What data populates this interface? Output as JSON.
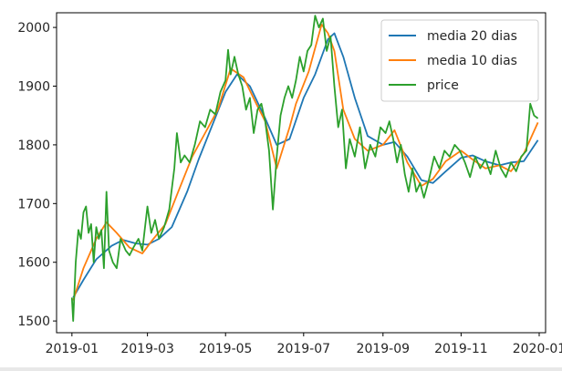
{
  "chart_data": {
    "type": "line",
    "title": "",
    "xlabel": "",
    "ylabel": "",
    "xlim": [
      "2018-12-20",
      "2020-01-06"
    ],
    "ylim": [
      1480,
      2025
    ],
    "x_ticks": [
      "2019-01",
      "2019-03",
      "2019-05",
      "2019-07",
      "2019-09",
      "2019-11",
      "2020-01"
    ],
    "x_tick_dates": [
      "2019-01-01",
      "2019-03-01",
      "2019-05-01",
      "2019-07-01",
      "2019-09-01",
      "2019-11-01",
      "2020-01-01"
    ],
    "y_ticks": [
      1500,
      1600,
      1700,
      1800,
      1900,
      2000
    ],
    "legend_position": "top-right",
    "grid": false,
    "series": [
      {
        "name": "media 20 dias",
        "color": "#1f77b4",
        "points": [
          [
            "2019-01-02",
            1540
          ],
          [
            "2019-01-10",
            1570
          ],
          [
            "2019-01-20",
            1605
          ],
          [
            "2019-02-01",
            1628
          ],
          [
            "2019-02-10",
            1638
          ],
          [
            "2019-02-20",
            1632
          ],
          [
            "2019-03-01",
            1630
          ],
          [
            "2019-03-10",
            1640
          ],
          [
            "2019-03-20",
            1660
          ],
          [
            "2019-04-01",
            1720
          ],
          [
            "2019-04-10",
            1775
          ],
          [
            "2019-04-20",
            1830
          ],
          [
            "2019-05-01",
            1890
          ],
          [
            "2019-05-10",
            1920
          ],
          [
            "2019-05-20",
            1900
          ],
          [
            "2019-06-01",
            1845
          ],
          [
            "2019-06-10",
            1800
          ],
          [
            "2019-06-20",
            1810
          ],
          [
            "2019-07-01",
            1880
          ],
          [
            "2019-07-10",
            1920
          ],
          [
            "2019-07-20",
            1980
          ],
          [
            "2019-07-25",
            1990
          ],
          [
            "2019-08-01",
            1950
          ],
          [
            "2019-08-10",
            1880
          ],
          [
            "2019-08-20",
            1815
          ],
          [
            "2019-09-01",
            1800
          ],
          [
            "2019-09-10",
            1805
          ],
          [
            "2019-09-20",
            1780
          ],
          [
            "2019-10-01",
            1740
          ],
          [
            "2019-10-10",
            1735
          ],
          [
            "2019-10-20",
            1755
          ],
          [
            "2019-11-01",
            1778
          ],
          [
            "2019-11-10",
            1782
          ],
          [
            "2019-11-20",
            1772
          ],
          [
            "2019-12-01",
            1765
          ],
          [
            "2019-12-10",
            1770
          ],
          [
            "2019-12-20",
            1772
          ],
          [
            "2019-12-31",
            1808
          ]
        ]
      },
      {
        "name": "media 10 dias",
        "color": "#ff7f0e",
        "points": [
          [
            "2019-01-02",
            1535
          ],
          [
            "2019-01-10",
            1590
          ],
          [
            "2019-01-20",
            1640
          ],
          [
            "2019-01-28",
            1668
          ],
          [
            "2019-02-05",
            1650
          ],
          [
            "2019-02-15",
            1625
          ],
          [
            "2019-02-25",
            1615
          ],
          [
            "2019-03-05",
            1638
          ],
          [
            "2019-03-15",
            1665
          ],
          [
            "2019-03-25",
            1720
          ],
          [
            "2019-04-05",
            1780
          ],
          [
            "2019-04-15",
            1820
          ],
          [
            "2019-04-25",
            1860
          ],
          [
            "2019-05-05",
            1930
          ],
          [
            "2019-05-15",
            1915
          ],
          [
            "2019-05-25",
            1870
          ],
          [
            "2019-06-01",
            1840
          ],
          [
            "2019-06-10",
            1760
          ],
          [
            "2019-06-20",
            1830
          ],
          [
            "2019-06-25",
            1870
          ],
          [
            "2019-07-05",
            1925
          ],
          [
            "2019-07-15",
            2005
          ],
          [
            "2019-07-20",
            1990
          ],
          [
            "2019-07-25",
            1960
          ],
          [
            "2019-08-01",
            1860
          ],
          [
            "2019-08-10",
            1810
          ],
          [
            "2019-08-20",
            1790
          ],
          [
            "2019-09-01",
            1800
          ],
          [
            "2019-09-10",
            1825
          ],
          [
            "2019-09-20",
            1770
          ],
          [
            "2019-10-01",
            1730
          ],
          [
            "2019-10-10",
            1742
          ],
          [
            "2019-10-20",
            1772
          ],
          [
            "2019-11-01",
            1790
          ],
          [
            "2019-11-10",
            1775
          ],
          [
            "2019-11-20",
            1760
          ],
          [
            "2019-12-01",
            1765
          ],
          [
            "2019-12-10",
            1755
          ],
          [
            "2019-12-20",
            1785
          ],
          [
            "2019-12-31",
            1838
          ]
        ]
      },
      {
        "name": "price",
        "color": "#2ca02c",
        "points": [
          [
            "2019-01-01",
            1540
          ],
          [
            "2019-01-02",
            1500
          ],
          [
            "2019-01-04",
            1600
          ],
          [
            "2019-01-06",
            1655
          ],
          [
            "2019-01-08",
            1640
          ],
          [
            "2019-01-10",
            1685
          ],
          [
            "2019-01-12",
            1695
          ],
          [
            "2019-01-14",
            1650
          ],
          [
            "2019-01-16",
            1665
          ],
          [
            "2019-01-18",
            1600
          ],
          [
            "2019-01-20",
            1660
          ],
          [
            "2019-01-22",
            1640
          ],
          [
            "2019-01-24",
            1655
          ],
          [
            "2019-01-26",
            1590
          ],
          [
            "2019-01-28",
            1720
          ],
          [
            "2019-01-30",
            1620
          ],
          [
            "2019-02-02",
            1600
          ],
          [
            "2019-02-05",
            1590
          ],
          [
            "2019-02-08",
            1640
          ],
          [
            "2019-02-12",
            1620
          ],
          [
            "2019-02-15",
            1612
          ],
          [
            "2019-02-18",
            1625
          ],
          [
            "2019-02-22",
            1640
          ],
          [
            "2019-02-25",
            1620
          ],
          [
            "2019-03-01",
            1695
          ],
          [
            "2019-03-04",
            1650
          ],
          [
            "2019-03-07",
            1672
          ],
          [
            "2019-03-10",
            1640
          ],
          [
            "2019-03-14",
            1660
          ],
          [
            "2019-03-18",
            1690
          ],
          [
            "2019-03-22",
            1760
          ],
          [
            "2019-03-24",
            1820
          ],
          [
            "2019-03-27",
            1770
          ],
          [
            "2019-03-30",
            1782
          ],
          [
            "2019-04-03",
            1770
          ],
          [
            "2019-04-07",
            1800
          ],
          [
            "2019-04-11",
            1840
          ],
          [
            "2019-04-15",
            1830
          ],
          [
            "2019-04-19",
            1860
          ],
          [
            "2019-04-23",
            1852
          ],
          [
            "2019-04-27",
            1890
          ],
          [
            "2019-05-01",
            1910
          ],
          [
            "2019-05-03",
            1962
          ],
          [
            "2019-05-05",
            1920
          ],
          [
            "2019-05-08",
            1950
          ],
          [
            "2019-05-11",
            1920
          ],
          [
            "2019-05-14",
            1900
          ],
          [
            "2019-05-17",
            1860
          ],
          [
            "2019-05-20",
            1880
          ],
          [
            "2019-05-23",
            1820
          ],
          [
            "2019-05-26",
            1860
          ],
          [
            "2019-05-29",
            1870
          ],
          [
            "2019-06-01",
            1840
          ],
          [
            "2019-06-04",
            1790
          ],
          [
            "2019-06-07",
            1690
          ],
          [
            "2019-06-10",
            1780
          ],
          [
            "2019-06-13",
            1850
          ],
          [
            "2019-06-16",
            1880
          ],
          [
            "2019-06-19",
            1900
          ],
          [
            "2019-06-22",
            1880
          ],
          [
            "2019-06-25",
            1910
          ],
          [
            "2019-06-28",
            1950
          ],
          [
            "2019-07-01",
            1925
          ],
          [
            "2019-07-04",
            1960
          ],
          [
            "2019-07-07",
            1970
          ],
          [
            "2019-07-10",
            2020
          ],
          [
            "2019-07-13",
            2000
          ],
          [
            "2019-07-16",
            2015
          ],
          [
            "2019-07-19",
            1960
          ],
          [
            "2019-07-22",
            1985
          ],
          [
            "2019-07-25",
            1900
          ],
          [
            "2019-07-28",
            1830
          ],
          [
            "2019-07-31",
            1860
          ],
          [
            "2019-08-03",
            1760
          ],
          [
            "2019-08-06",
            1810
          ],
          [
            "2019-08-10",
            1780
          ],
          [
            "2019-08-14",
            1830
          ],
          [
            "2019-08-18",
            1760
          ],
          [
            "2019-08-22",
            1800
          ],
          [
            "2019-08-26",
            1780
          ],
          [
            "2019-08-30",
            1830
          ],
          [
            "2019-09-03",
            1820
          ],
          [
            "2019-09-06",
            1840
          ],
          [
            "2019-09-09",
            1810
          ],
          [
            "2019-09-12",
            1770
          ],
          [
            "2019-09-15",
            1800
          ],
          [
            "2019-09-18",
            1750
          ],
          [
            "2019-09-21",
            1720
          ],
          [
            "2019-09-24",
            1760
          ],
          [
            "2019-09-27",
            1720
          ],
          [
            "2019-09-30",
            1735
          ],
          [
            "2019-10-03",
            1710
          ],
          [
            "2019-10-07",
            1742
          ],
          [
            "2019-10-11",
            1780
          ],
          [
            "2019-10-15",
            1760
          ],
          [
            "2019-10-19",
            1790
          ],
          [
            "2019-10-23",
            1780
          ],
          [
            "2019-10-27",
            1800
          ],
          [
            "2019-10-31",
            1790
          ],
          [
            "2019-11-04",
            1770
          ],
          [
            "2019-11-08",
            1745
          ],
          [
            "2019-11-12",
            1780
          ],
          [
            "2019-11-16",
            1760
          ],
          [
            "2019-11-20",
            1775
          ],
          [
            "2019-11-24",
            1750
          ],
          [
            "2019-11-28",
            1790
          ],
          [
            "2019-12-02",
            1760
          ],
          [
            "2019-12-06",
            1745
          ],
          [
            "2019-12-10",
            1770
          ],
          [
            "2019-12-14",
            1755
          ],
          [
            "2019-12-18",
            1780
          ],
          [
            "2019-12-22",
            1790
          ],
          [
            "2019-12-25",
            1870
          ],
          [
            "2019-12-28",
            1850
          ],
          [
            "2019-12-31",
            1845
          ]
        ]
      }
    ]
  }
}
